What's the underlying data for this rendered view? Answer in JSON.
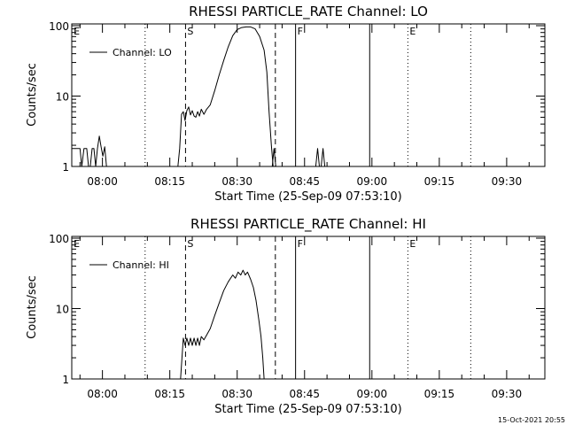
{
  "footer_timestamp": "15-Oct-2021 20:55",
  "chart_data": [
    {
      "type": "line",
      "title": "RHESSI PARTICLE_RATE Channel: LO",
      "xlabel": "Start Time (25-Sep-09 07:53:10)",
      "ylabel": "Counts/sec",
      "y_scale": "log",
      "ylim": [
        1,
        100
      ],
      "yticks": [
        {
          "v": 1,
          "label": "1"
        },
        {
          "v": 10,
          "label": "10"
        },
        {
          "v": 100,
          "label": "100"
        }
      ],
      "xlim_min": [
        -6.83,
        36.67
      ],
      "xticks": [
        {
          "m": 0,
          "label": "08:00"
        },
        {
          "m": 15,
          "label": "08:15"
        },
        {
          "m": 30,
          "label": "08:30"
        },
        {
          "m": 45,
          "label": "08:45"
        },
        {
          "m": 60,
          "label": "09:00"
        },
        {
          "m": 75,
          "label": "09:15"
        },
        {
          "m": 90,
          "label": "09:30"
        }
      ],
      "legend": {
        "placement": "top-left",
        "entries": [
          "Channel: LO"
        ]
      },
      "markers": [
        {
          "label": "E",
          "m": -6.8,
          "style": "none"
        },
        {
          "label": "",
          "m": 9.5,
          "style": "dotted"
        },
        {
          "label": "S",
          "m": 18.5,
          "style": "dashed"
        },
        {
          "label": "",
          "m": 38.5,
          "style": "dashed"
        },
        {
          "label": "F",
          "m": 43,
          "style": "solid"
        },
        {
          "label": "",
          "m": 59.5,
          "style": "solid"
        },
        {
          "label": "E",
          "m": 68,
          "style": "dotted"
        },
        {
          "label": "",
          "m": 82,
          "style": "dotted"
        }
      ],
      "series": [
        {
          "name": "Channel: LO",
          "segments": [
            [
              [
                -6.8,
                1.8
              ],
              [
                -5,
                1.8
              ],
              [
                -4.6,
                1
              ],
              [
                -4.1,
                1.8
              ],
              [
                -3.5,
                1.8
              ],
              [
                -3.1,
                1
              ],
              [
                -2.7,
                1
              ],
              [
                -2.3,
                1.8
              ],
              [
                -1.9,
                1.8
              ],
              [
                -1.5,
                1
              ],
              [
                -1.1,
                1.8
              ],
              [
                -0.7,
                2.7
              ],
              [
                -0.3,
                1.9
              ],
              [
                0.1,
                1.4
              ],
              [
                0.5,
                1.9
              ],
              [
                0.9,
                1
              ]
            ],
            [
              [
                16.8,
                1
              ],
              [
                17.2,
                1.8
              ],
              [
                17.6,
                5.5
              ],
              [
                18,
                6
              ],
              [
                18.4,
                4.5
              ],
              [
                18.8,
                6.2
              ],
              [
                19.2,
                7
              ],
              [
                19.6,
                5.4
              ],
              [
                20,
                6.2
              ],
              [
                20.4,
                5.2
              ],
              [
                20.8,
                5
              ],
              [
                21.2,
                6
              ],
              [
                21.6,
                5.2
              ],
              [
                22,
                6.5
              ],
              [
                22.6,
                5.5
              ],
              [
                23.2,
                6.5
              ],
              [
                24,
                7.5
              ],
              [
                25,
                12
              ],
              [
                26,
                20
              ],
              [
                27,
                32
              ],
              [
                28,
                50
              ],
              [
                29,
                72
              ],
              [
                30,
                88
              ],
              [
                31,
                94
              ],
              [
                32,
                96
              ],
              [
                33,
                96
              ],
              [
                34,
                90
              ],
              [
                35,
                70
              ],
              [
                36,
                45
              ],
              [
                36.6,
                22
              ],
              [
                37.1,
                6
              ],
              [
                37.6,
                2
              ],
              [
                38,
                1
              ]
            ],
            [
              [
                37.8,
                1
              ],
              [
                38.2,
                1.8
              ],
              [
                38.6,
                1
              ]
            ],
            [
              [
                47.5,
                1
              ],
              [
                47.9,
                1.8
              ],
              [
                48.3,
                1
              ],
              [
                48.7,
                1
              ],
              [
                49.1,
                1.8
              ],
              [
                49.5,
                1
              ]
            ]
          ]
        }
      ]
    },
    {
      "type": "line",
      "title": "RHESSI PARTICLE_RATE Channel: HI",
      "xlabel": "Start Time (25-Sep-09 07:53:10)",
      "ylabel": "Counts/sec",
      "y_scale": "log",
      "ylim": [
        1,
        100
      ],
      "yticks": [
        {
          "v": 1,
          "label": "1"
        },
        {
          "v": 10,
          "label": "10"
        },
        {
          "v": 100,
          "label": "100"
        }
      ],
      "xticks": [
        {
          "m": 0,
          "label": "08:00"
        },
        {
          "m": 15,
          "label": "08:15"
        },
        {
          "m": 30,
          "label": "08:30"
        },
        {
          "m": 45,
          "label": "08:45"
        },
        {
          "m": 60,
          "label": "09:00"
        },
        {
          "m": 75,
          "label": "09:15"
        },
        {
          "m": 90,
          "label": "09:30"
        }
      ],
      "legend": {
        "placement": "top-left",
        "entries": [
          "Channel: HI"
        ]
      },
      "markers": [
        {
          "label": "E",
          "m": -6.8,
          "style": "none"
        },
        {
          "label": "",
          "m": 9.5,
          "style": "dotted"
        },
        {
          "label": "S",
          "m": 18.5,
          "style": "dashed"
        },
        {
          "label": "",
          "m": 38.5,
          "style": "dashed"
        },
        {
          "label": "F",
          "m": 43,
          "style": "solid"
        },
        {
          "label": "",
          "m": 59.5,
          "style": "solid"
        },
        {
          "label": "E",
          "m": 68,
          "style": "dotted"
        },
        {
          "label": "",
          "m": 82,
          "style": "dotted"
        }
      ],
      "series": [
        {
          "name": "Channel: HI",
          "segments": [
            [
              [
                17.4,
                1
              ],
              [
                17.7,
                2
              ],
              [
                18,
                3.8
              ],
              [
                18.4,
                3
              ],
              [
                18.8,
                3.8
              ],
              [
                19.2,
                3
              ],
              [
                19.6,
                3.8
              ],
              [
                20,
                3
              ],
              [
                20.4,
                3.8
              ],
              [
                20.8,
                3
              ],
              [
                21.2,
                3.8
              ],
              [
                21.6,
                3
              ],
              [
                22,
                4
              ],
              [
                22.6,
                3.6
              ],
              [
                23.2,
                4.2
              ],
              [
                24,
                5.2
              ],
              [
                25,
                8
              ],
              [
                26,
                12
              ],
              [
                27,
                18
              ],
              [
                28,
                24
              ],
              [
                29,
                30
              ],
              [
                29.6,
                27
              ],
              [
                30.2,
                33
              ],
              [
                30.8,
                30
              ],
              [
                31.3,
                35
              ],
              [
                31.8,
                30
              ],
              [
                32.3,
                33
              ],
              [
                33,
                26
              ],
              [
                33.6,
                20
              ],
              [
                34.2,
                13
              ],
              [
                34.8,
                7
              ],
              [
                35.3,
                4
              ],
              [
                35.7,
                2
              ],
              [
                36,
                1
              ]
            ]
          ]
        }
      ]
    }
  ]
}
